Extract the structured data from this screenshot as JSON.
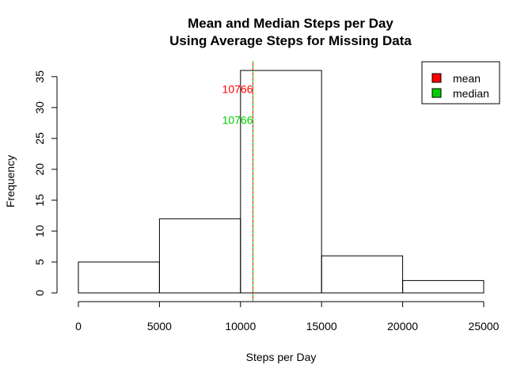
{
  "chart_data": {
    "type": "bar",
    "title": "Mean and Median Steps per Day",
    "subtitle": "Using Average Steps for Missing Data",
    "xlabel": "Steps per Day",
    "ylabel": "Frequency",
    "bins": [
      {
        "from": 0,
        "to": 5000,
        "count": 5
      },
      {
        "from": 5000,
        "to": 10000,
        "count": 12
      },
      {
        "from": 10000,
        "to": 15000,
        "count": 36
      },
      {
        "from": 15000,
        "to": 20000,
        "count": 6
      },
      {
        "from": 20000,
        "to": 25000,
        "count": 2
      }
    ],
    "xlim": [
      0,
      25000
    ],
    "ylim": [
      0,
      36
    ],
    "x_ticks": [
      0,
      5000,
      10000,
      15000,
      20000,
      25000
    ],
    "y_ticks": [
      0,
      5,
      10,
      15,
      20,
      25,
      30,
      35
    ],
    "grid": false,
    "mean": {
      "value": 10766,
      "label": "10766",
      "color": "#ff0000"
    },
    "median": {
      "value": 10766,
      "label": "10766",
      "color": "#00cd00"
    },
    "legend": {
      "placement": "top-right",
      "items": [
        {
          "label": "mean",
          "color": "#ff0000"
        },
        {
          "label": "median",
          "color": "#00cd00"
        }
      ]
    }
  }
}
